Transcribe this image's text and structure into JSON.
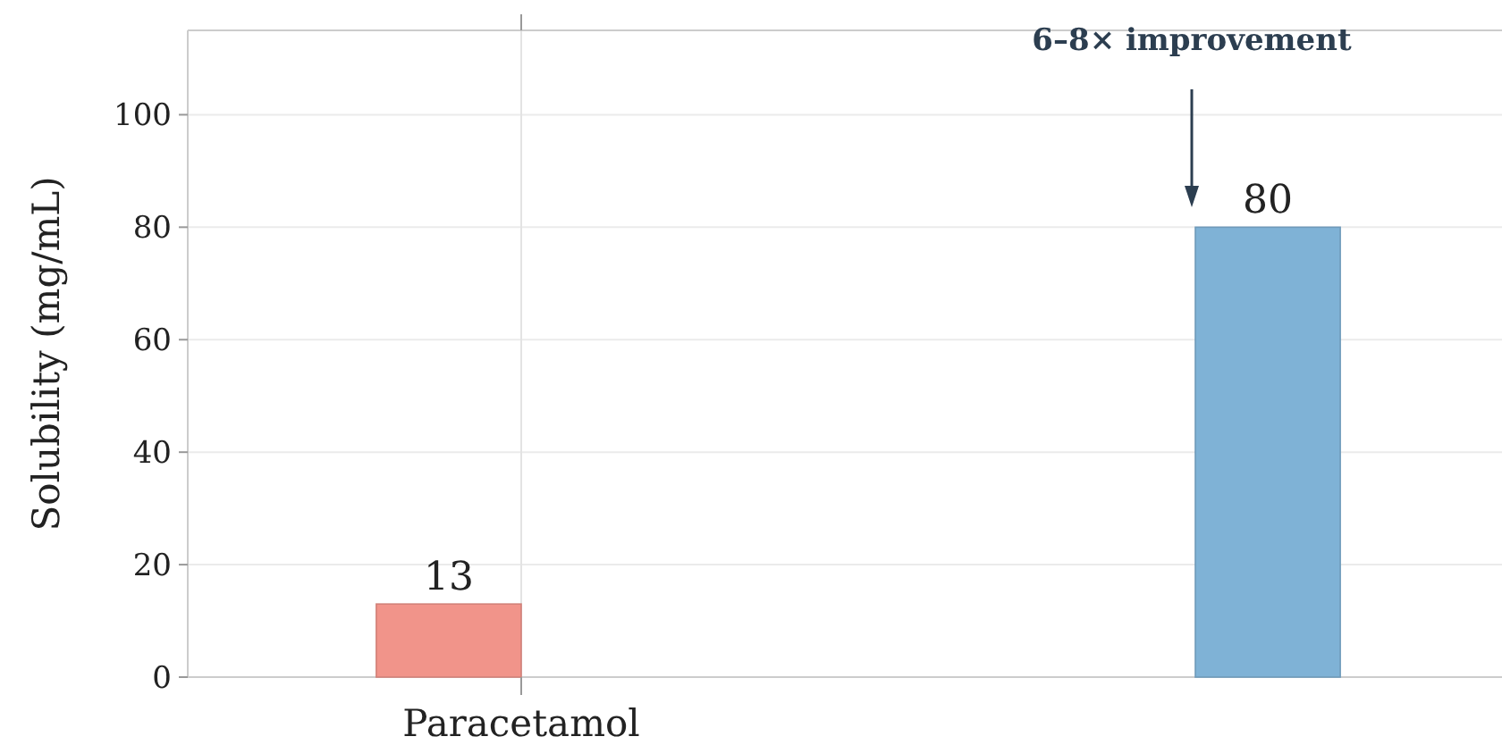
{
  "chart_data": {
    "type": "bar",
    "ylabel": "Solubility (mg/mL)",
    "categories": [
      "Paracetamol",
      null
    ],
    "series": [
      {
        "color": "#f1948a",
        "values": [
          13,
          null
        ]
      },
      {
        "color": "#7fb2d6",
        "values": [
          null,
          80
        ]
      }
    ],
    "ylim": [
      0,
      115
    ],
    "yticks": [
      0,
      20,
      40,
      60,
      80,
      100
    ],
    "grid": true,
    "data_labels": true,
    "annotations": [
      "6–8× improvement"
    ]
  }
}
